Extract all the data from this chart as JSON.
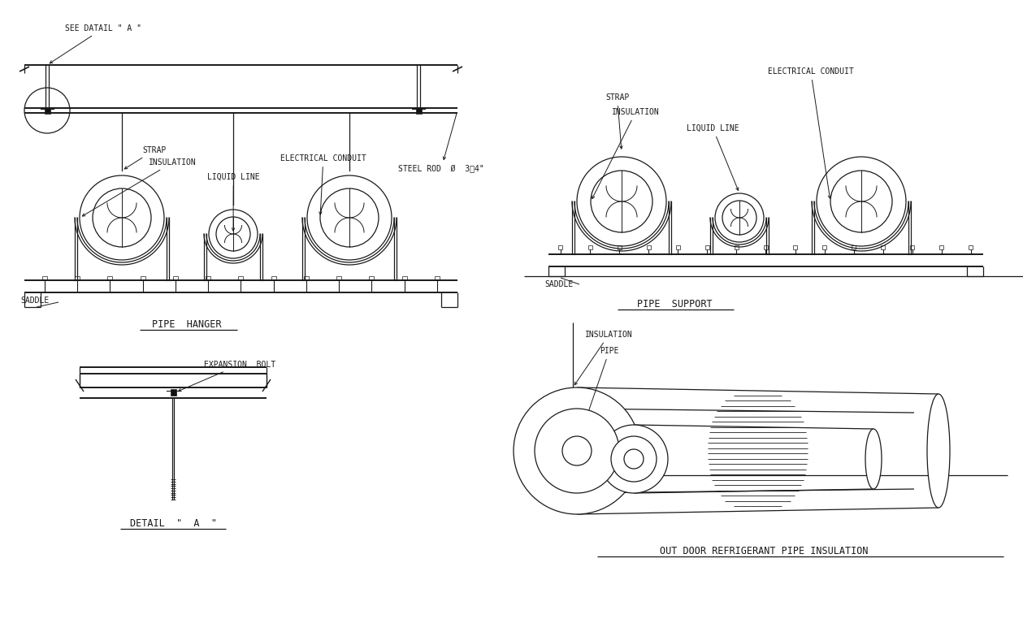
{
  "bg_color": "#ffffff",
  "lc": "#1a1a1a",
  "sections": {
    "pipe_hanger": {
      "title": "PIPE  HANGER",
      "label_see_detail": "SEE DATAIL \" A \"",
      "label_strap": "STRAP",
      "label_insulation": "INSULATION",
      "label_liquid_line": "LIQUID LINE",
      "label_electrical_conduit": "ELECTRICAL CONDUIT",
      "label_steel_rod": "STEEL ROD  Ø  3⁄4\"",
      "label_saddle": "SADDLE"
    },
    "pipe_support": {
      "title": "PIPE  SUPPORT",
      "label_strap": "STRAP",
      "label_insulation": "INSULATION",
      "label_liquid_line": "LIQUID LINE",
      "label_electrical_conduit": "ELECTRICAL CONDUIT",
      "label_saddle": "SADDLE"
    },
    "detail_a": {
      "title": "DETAIL  \"  A  \"",
      "label_expansion_bolt": "EXPANSION  BOLT"
    },
    "outdoor_insulation": {
      "title": "OUT DOOR REFRIGERANT PIPE INSULATION",
      "label_insulation": "INSULATION",
      "label_pipe": "PIPE"
    }
  }
}
